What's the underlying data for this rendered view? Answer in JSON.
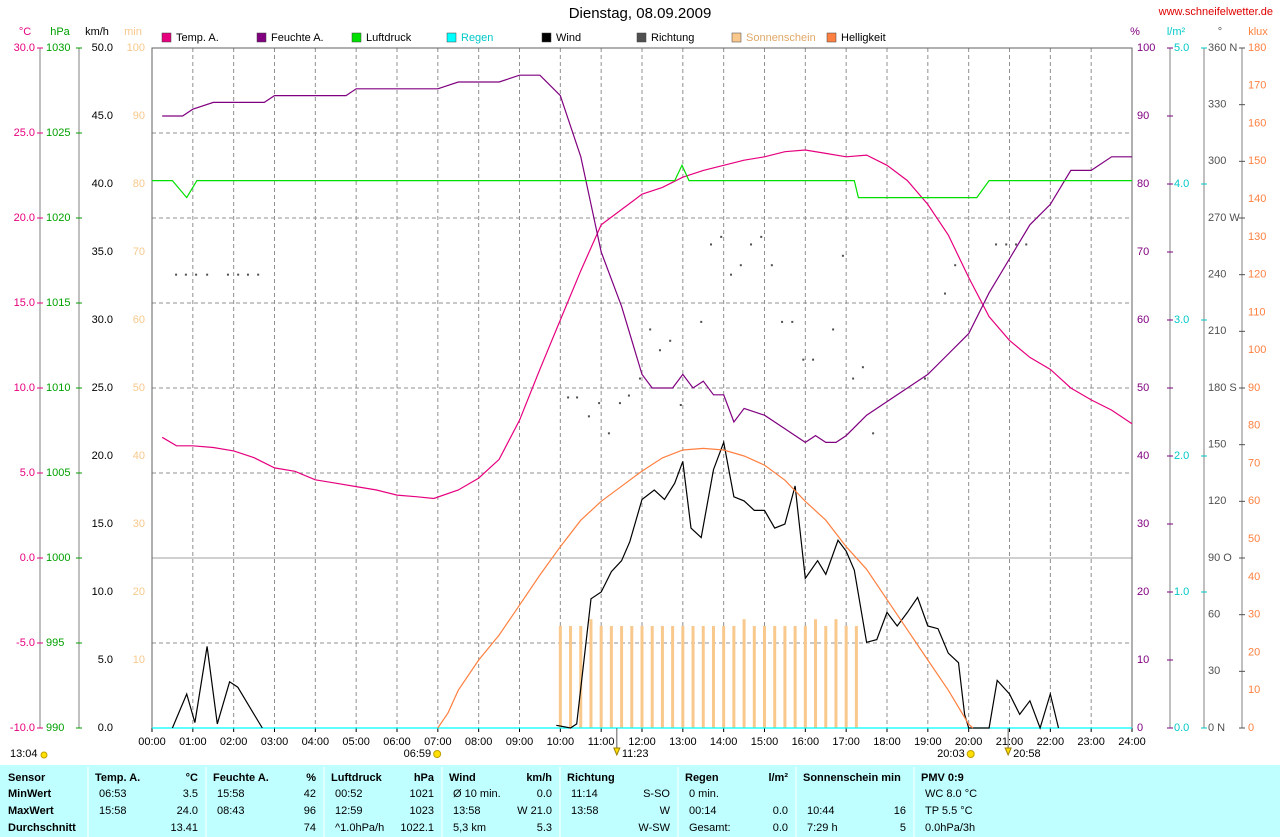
{
  "chart_data": {
    "type": "line",
    "title": "Dienstag, 08.09.2009",
    "source": "www.schneifelwetter.de",
    "xlim": [
      0,
      24
    ],
    "xticks": [
      {
        "value": 0,
        "label": "00:00"
      },
      {
        "value": 1,
        "label": "01:00"
      },
      {
        "value": 2,
        "label": "02:00"
      },
      {
        "value": 3,
        "label": "03:00"
      },
      {
        "value": 4,
        "label": "04:00"
      },
      {
        "value": 5,
        "label": "05:00"
      },
      {
        "value": 6,
        "label": "06:00"
      },
      {
        "value": 7,
        "label": "07:00"
      },
      {
        "value": 8,
        "label": "08:00"
      },
      {
        "value": 9,
        "label": "09:00"
      },
      {
        "value": 10,
        "label": "10:00"
      },
      {
        "value": 11,
        "label": "11:00"
      },
      {
        "value": 12,
        "label": "12:00"
      },
      {
        "value": 13,
        "label": "13:00"
      },
      {
        "value": 14,
        "label": "14:00"
      },
      {
        "value": 15,
        "label": "15:00"
      },
      {
        "value": 16,
        "label": "16:00"
      },
      {
        "value": 17,
        "label": "17:00"
      },
      {
        "value": 18,
        "label": "18:00"
      },
      {
        "value": 19,
        "label": "19:00"
      },
      {
        "value": 20,
        "label": "20:00"
      },
      {
        "value": 21,
        "label": "21:00"
      },
      {
        "value": 22,
        "label": "22:00"
      },
      {
        "value": 23,
        "label": "23:00"
      },
      {
        "value": 24,
        "label": "24:00"
      }
    ],
    "grid": true,
    "axes": [
      {
        "unit": "°C",
        "color": "#e6007e",
        "lim": [
          -10,
          30
        ],
        "ticks": [
          {
            "value": -10,
            "label": "-10.0"
          },
          {
            "value": -5,
            "label": "-5.0"
          },
          {
            "value": 0,
            "label": "0.0"
          },
          {
            "value": 5,
            "label": "5.0"
          },
          {
            "value": 10,
            "label": "10.0"
          },
          {
            "value": 15,
            "label": "15.0"
          },
          {
            "value": 20,
            "label": "20.0"
          },
          {
            "value": 25,
            "label": "25.0"
          },
          {
            "value": 30,
            "label": "30.0"
          }
        ]
      },
      {
        "unit": "hPa",
        "color": "#00a000",
        "lim": [
          990,
          1030
        ],
        "ticks": [
          990,
          995,
          1000,
          1005,
          1010,
          1015,
          1020,
          1025,
          1030
        ]
      },
      {
        "unit": "km/h",
        "color": "#000000",
        "lim": [
          0,
          50
        ],
        "ticks": [
          {
            "value": 0,
            "label": "0.0"
          },
          {
            "value": 5,
            "label": "5.0"
          },
          {
            "value": 10,
            "label": "10.0"
          },
          {
            "value": 15,
            "label": "15.0"
          },
          {
            "value": 20,
            "label": "20.0"
          },
          {
            "value": 25,
            "label": "25.0"
          },
          {
            "value": 30,
            "label": "30.0"
          },
          {
            "value": 35,
            "label": "35.0"
          },
          {
            "value": 40,
            "label": "40.0"
          },
          {
            "value": 45,
            "label": "45.0"
          },
          {
            "value": 50,
            "label": "50.0"
          }
        ]
      },
      {
        "unit": "min",
        "color": "#f8c88c",
        "lim": [
          0,
          100
        ],
        "ticks": [
          10,
          20,
          30,
          40,
          50,
          60,
          70,
          80,
          90,
          100
        ]
      },
      {
        "unit": "%",
        "color": "#800080",
        "lim": [
          0,
          100
        ],
        "ticks": [
          0,
          10,
          20,
          30,
          40,
          50,
          60,
          70,
          80,
          90,
          100
        ]
      },
      {
        "unit": "l/m²",
        "color": "#00c8c8",
        "lim": [
          0,
          5
        ],
        "ticks": [
          {
            "value": 0,
            "label": "0.0"
          },
          {
            "value": 1,
            "label": "1.0"
          },
          {
            "value": 2,
            "label": "2.0"
          },
          {
            "value": 3,
            "label": "3.0"
          },
          {
            "value": 4,
            "label": "4.0"
          },
          {
            "value": 5,
            "label": "5.0"
          }
        ]
      },
      {
        "unit": "°",
        "color": "#505050",
        "lim": [
          0,
          360
        ],
        "ticks": [
          {
            "value": 0,
            "label": "0 N"
          },
          30,
          60,
          {
            "value": 90,
            "label": "90 O"
          },
          120,
          150,
          {
            "value": 180,
            "label": "180 S"
          },
          210,
          240,
          {
            "value": 270,
            "label": "270 W"
          },
          300,
          330,
          {
            "value": 360,
            "label": "360 N"
          }
        ]
      },
      {
        "unit": "klux",
        "color": "#ff8040",
        "lim": [
          0,
          180
        ],
        "ticks": [
          0,
          10,
          20,
          30,
          40,
          50,
          60,
          70,
          80,
          90,
          100,
          110,
          120,
          130,
          140,
          150,
          160,
          170,
          180
        ]
      }
    ],
    "series": [
      {
        "name": "Temp. A.",
        "color": "#e6007e",
        "type": "line",
        "axis": "°C",
        "x": [
          0.25,
          0.6,
          1,
          1.5,
          2,
          2.5,
          3,
          3.5,
          4,
          4.5,
          5,
          5.5,
          6,
          6.5,
          6.9,
          7.5,
          8,
          8.5,
          9,
          9.5,
          10,
          10.5,
          11,
          11.5,
          12,
          12.5,
          13,
          13.5,
          14,
          14.5,
          15,
          15.5,
          16,
          16.5,
          17,
          17.5,
          18,
          18.5,
          19,
          19.5,
          20,
          20.5,
          21,
          21.5,
          22,
          22.5,
          23,
          23.5,
          24
        ],
        "values": [
          7.1,
          6.6,
          6.6,
          6.5,
          6.3,
          5.9,
          5.3,
          5.1,
          4.6,
          4.4,
          4.2,
          4.0,
          3.7,
          3.6,
          3.5,
          4.0,
          4.7,
          5.8,
          8.1,
          11.1,
          14.0,
          16.9,
          19.6,
          20.5,
          21.4,
          21.8,
          22.4,
          22.8,
          23.1,
          23.4,
          23.6,
          23.9,
          24.0,
          23.8,
          23.6,
          23.7,
          23.1,
          22.2,
          20.8,
          19.0,
          16.5,
          14.2,
          12.8,
          11.8,
          11.1,
          10.0,
          9.3,
          8.7,
          7.9
        ]
      },
      {
        "name": "Feuchte A.",
        "color": "#800080",
        "type": "line",
        "axis": "%",
        "x": [
          0.25,
          0.75,
          1,
          1.5,
          2,
          2.75,
          3,
          3.5,
          4.75,
          5,
          6,
          7,
          7.5,
          8.5,
          9,
          9.5,
          10,
          10.5,
          11,
          11.5,
          12,
          12.25,
          12.5,
          12.75,
          13,
          13.25,
          13.5,
          13.75,
          14,
          14.25,
          14.5,
          15,
          15.5,
          16,
          16.25,
          16.5,
          16.75,
          17,
          17.5,
          18,
          18.5,
          19,
          19.5,
          20,
          20.5,
          21,
          21.5,
          22,
          22.5,
          23,
          23.5,
          24
        ],
        "values": [
          90,
          90,
          91,
          92,
          92,
          92,
          93,
          93,
          93,
          94,
          94,
          94,
          95,
          95,
          96,
          96,
          93,
          84,
          70,
          62,
          52,
          50,
          50,
          50,
          52,
          50,
          51,
          49,
          49,
          45,
          47,
          46,
          44,
          42,
          43,
          42,
          42,
          43,
          46,
          48,
          50,
          52,
          55,
          58,
          64,
          69,
          74,
          77,
          82,
          82,
          84,
          84
        ]
      },
      {
        "name": "Luftdruck",
        "color": "#00e000",
        "type": "line",
        "axis": "hPa",
        "x": [
          0,
          0.5,
          0.85,
          1.1,
          12.8,
          12.98,
          13.15,
          17.2,
          17.3,
          20.2,
          20.5,
          24
        ],
        "values": [
          1022.2,
          1022.2,
          1021.2,
          1022.2,
          1022.2,
          1023.1,
          1022.2,
          1022.2,
          1021.2,
          1021.2,
          1022.2,
          1022.2
        ]
      },
      {
        "name": "Regen",
        "color": "#00ffff",
        "type": "line",
        "axis": "l/m²",
        "x": [
          0,
          24
        ],
        "values": [
          0,
          0
        ]
      },
      {
        "name": "Wind",
        "color": "#000000",
        "type": "line",
        "axis": "km/h",
        "x": [
          0.5,
          0.85,
          1.05,
          1.35,
          1.6,
          1.9,
          2.1,
          2.5,
          2.7,
          6,
          9.9,
          10.25,
          10.4,
          10.75,
          11,
          11.25,
          11.5,
          11.7,
          12,
          12.3,
          12.55,
          12.8,
          13,
          13.2,
          13.45,
          13.75,
          14,
          14.25,
          14.5,
          14.75,
          15,
          15.25,
          15.5,
          15.75,
          16,
          16.3,
          16.5,
          16.8,
          17,
          17.2,
          17.5,
          17.75,
          18,
          18.25,
          18.5,
          18.75,
          19,
          19.25,
          19.5,
          19.75,
          19.9,
          20,
          20.5,
          20.7,
          21,
          21.25,
          21.5,
          21.75,
          22,
          22.2
        ],
        "values": [
          0,
          2.5,
          0.4,
          6.0,
          0.3,
          3.4,
          3.0,
          1.0,
          0,
          null,
          0.2,
          0,
          0.3,
          9.5,
          10.0,
          11.5,
          12.3,
          13.7,
          16.8,
          17.5,
          16.8,
          18.0,
          19.6,
          14.7,
          14.0,
          19.0,
          21.0,
          17.0,
          16.7,
          16.0,
          16.0,
          14.7,
          15.0,
          17.8,
          11.0,
          12.3,
          11.3,
          13.8,
          13.0,
          11.6,
          6.3,
          6.5,
          8.5,
          7.5,
          8.5,
          9.6,
          7.5,
          7.3,
          5.5,
          4.8,
          1.0,
          0,
          0,
          3.5,
          2.5,
          1.0,
          2.0,
          0,
          2.5,
          0
        ]
      },
      {
        "name": "Richtung",
        "color": "#505050",
        "type": "dots",
        "axis": "°",
        "x": [
          0.59,
          0.83,
          1.08,
          1.35,
          1.86,
          2.11,
          2.35,
          2.6,
          10.19,
          10.41,
          10.7,
          10.95,
          11.19,
          11.46,
          11.68,
          11.95,
          12.2,
          12.44,
          12.69,
          12.95,
          13.45,
          13.69,
          13.94,
          14.18,
          14.42,
          14.67,
          14.92,
          15.18,
          15.43,
          15.68,
          15.95,
          16.19,
          16.68,
          16.92,
          17.17,
          17.41,
          17.66,
          18.93,
          19.42,
          19.67,
          20.67,
          20.92,
          21.16,
          21.41
        ],
        "values": [
          240,
          240,
          240,
          240,
          240,
          240,
          240,
          240,
          175,
          175,
          165,
          172,
          156,
          172,
          176,
          185,
          211,
          200,
          205,
          171,
          215,
          256,
          260,
          240,
          245,
          256,
          260,
          245,
          215,
          215,
          195,
          195,
          211,
          250,
          185,
          191,
          156,
          185,
          230,
          245,
          256,
          256,
          256,
          256
        ]
      },
      {
        "name": "Sonnenschein",
        "color": "#f8c88c",
        "type": "bars",
        "axis": "min",
        "x": [
          10,
          10.25,
          10.5,
          10.75,
          11,
          11.25,
          11.5,
          11.75,
          12,
          12.25,
          12.5,
          12.75,
          13,
          13.25,
          13.5,
          13.75,
          14,
          14.25,
          14.5,
          14.75,
          15,
          15.25,
          15.5,
          15.75,
          16,
          16.25,
          16.5,
          16.75,
          17,
          17.25
        ],
        "values": [
          15,
          15,
          15,
          16,
          15,
          15,
          15,
          15,
          15,
          15,
          15,
          15,
          15,
          15,
          15,
          15,
          15,
          15,
          16,
          15,
          15,
          15,
          15,
          15,
          15,
          16,
          15,
          16,
          15,
          15
        ]
      },
      {
        "name": "Helligkeit",
        "color": "#ff8040",
        "type": "line",
        "axis": "klux",
        "x": [
          7,
          7.25,
          7.5,
          8,
          8.5,
          9,
          9.5,
          10,
          10.5,
          11,
          11.5,
          12,
          12.5,
          13,
          13.5,
          14,
          14.5,
          15,
          15.5,
          16,
          16.5,
          17,
          17.5,
          18,
          18.5,
          19,
          19.5,
          20,
          20.1
        ],
        "values": [
          0,
          4,
          10,
          18,
          24.6,
          32.5,
          40.5,
          48,
          55,
          60,
          64,
          68,
          71.5,
          73.6,
          74,
          73.6,
          72,
          69.6,
          65.6,
          60,
          55,
          48,
          42,
          34,
          26,
          18,
          10,
          1,
          0
        ]
      }
    ],
    "events": [
      {
        "label": "06:59",
        "kind": "sun"
      },
      {
        "label": "11:23",
        "kind": "moon"
      },
      {
        "label": "20:03",
        "kind": "sun"
      },
      {
        "label": "20:58",
        "kind": "moon"
      }
    ],
    "day_length": "13:04"
  },
  "table": {
    "row_labels": [
      "Sensor",
      "MinWert",
      "MaxWert",
      "Durchschnitt"
    ],
    "groups": [
      {
        "header": {
          "left": "Temp. A.",
          "right": "°C"
        },
        "rows": [
          {
            "left": "06:53",
            "right": "3.5"
          },
          {
            "left": "15:58",
            "right": "24.0"
          },
          {
            "right": "13.41"
          }
        ]
      },
      {
        "header": {
          "left": "Feuchte A.",
          "right": "%"
        },
        "rows": [
          {
            "left": "15:58",
            "right": "42"
          },
          {
            "left": "08:43",
            "right": "96"
          },
          {
            "right": "74"
          }
        ]
      },
      {
        "header": {
          "left": "Luftdruck",
          "right": "hPa"
        },
        "rows": [
          {
            "left": "00:52",
            "right": "1021"
          },
          {
            "left": "12:59",
            "right": "1023"
          },
          {
            "left": "^1.0hPa/h",
            "right": "1022.1"
          }
        ]
      },
      {
        "header": {
          "left": "Wind",
          "right": "km/h"
        },
        "rows": [
          {
            "left": "Ø 10 min.",
            "right": "0.0"
          },
          {
            "left": "13:58",
            "right": "W 21.0"
          },
          {
            "left": "5,3 km",
            "right": "5.3"
          }
        ]
      },
      {
        "header": {
          "left": "Richtung"
        },
        "rows": [
          {
            "left": "11:14",
            "right": "S-SO"
          },
          {
            "left": "13:58",
            "right": "W"
          },
          {
            "right": "W-SW"
          }
        ]
      },
      {
        "header": {
          "left": "Regen",
          "right": "l/m²"
        },
        "rows": [
          {
            "left": "0 min."
          },
          {
            "left": "00:14",
            "right": "0.0"
          },
          {
            "left": "Gesamt:",
            "right": "0.0"
          }
        ]
      },
      {
        "header": {
          "left": "Sonnenschein min"
        },
        "rows": [
          {},
          {
            "left": "10:44",
            "right": "16"
          },
          {
            "left": "7:29 h",
            "right": "5"
          }
        ]
      },
      {
        "header": {
          "left": "PMV 0:9"
        },
        "rows": [
          {
            "left": "WC 8.0 °C"
          },
          {
            "left": "TP 5.5 °C"
          },
          {
            "left": "0.0hPa/3h"
          }
        ]
      }
    ]
  }
}
